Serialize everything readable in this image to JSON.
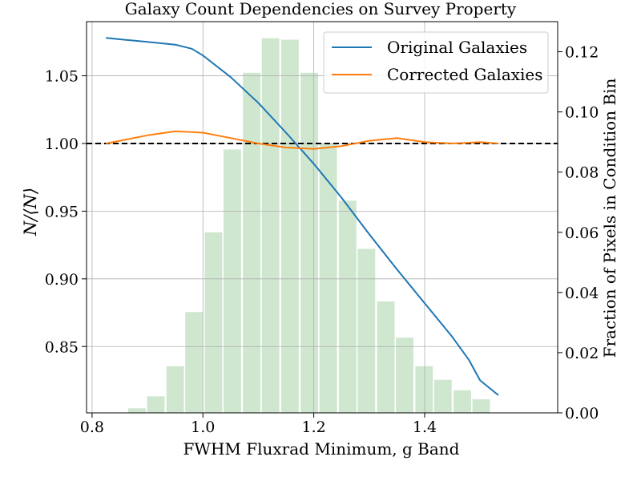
{
  "chart_data": {
    "type": "bar+line",
    "title": "Galaxy Count Dependencies on Survey Property",
    "xlabel": "FWHM Fluxrad Minimum, g Band",
    "ylabel_left": "N/⟨N⟩",
    "ylabel_right": "Fraction of Pixels in Condition Bin",
    "xlim": [
      0.79,
      1.64
    ],
    "ylim_left": [
      0.801,
      1.09
    ],
    "ylim_right": [
      0.0,
      0.13
    ],
    "x_ticks": [
      0.8,
      1.0,
      1.2,
      1.4
    ],
    "x_tick_labels": [
      "0.8",
      "1.0",
      "1.2",
      "1.4"
    ],
    "y_left_ticks": [
      0.85,
      0.9,
      0.95,
      1.0,
      1.05
    ],
    "y_left_tick_labels": [
      "0.85",
      "0.90",
      "0.95",
      "1.00",
      "1.05"
    ],
    "y_right_ticks": [
      0.0,
      0.02,
      0.04,
      0.06,
      0.08,
      0.1,
      0.12
    ],
    "y_right_tick_labels": [
      "0.00",
      "0.02",
      "0.04",
      "0.06",
      "0.08",
      "0.10",
      "0.12"
    ],
    "grid": true,
    "legend_position": "top-right",
    "reference_line": {
      "y": 1.0,
      "style": "dashed",
      "color": "#000000"
    },
    "histogram": {
      "axis": "right",
      "color": "#cfe6cf",
      "bin_width": 0.0345,
      "bin_centers": [
        0.846,
        0.881,
        0.915,
        0.95,
        0.984,
        1.019,
        1.053,
        1.088,
        1.122,
        1.157,
        1.192,
        1.226,
        1.261,
        1.295,
        1.33,
        1.364,
        1.399,
        1.433,
        1.468,
        1.502
      ],
      "values": [
        0.0,
        0.0015,
        0.0055,
        0.0155,
        0.0335,
        0.06,
        0.0875,
        0.113,
        0.1245,
        0.124,
        0.113,
        0.0895,
        0.0705,
        0.0545,
        0.037,
        0.025,
        0.0155,
        0.011,
        0.0075,
        0.0045
      ]
    },
    "series": [
      {
        "name": "Original Galaxies",
        "color": "#1f77b4",
        "x": [
          0.825,
          0.85,
          0.9,
          0.95,
          0.98,
          1.0,
          1.05,
          1.1,
          1.15,
          1.2,
          1.25,
          1.3,
          1.35,
          1.4,
          1.45,
          1.48,
          1.5,
          1.533
        ],
        "y": [
          1.078,
          1.077,
          1.075,
          1.073,
          1.07,
          1.065,
          1.049,
          1.03,
          1.008,
          0.985,
          0.96,
          0.933,
          0.907,
          0.882,
          0.857,
          0.84,
          0.825,
          0.814
        ]
      },
      {
        "name": "Corrected Galaxies",
        "color": "#ff7f0e",
        "x": [
          0.825,
          0.85,
          0.9,
          0.95,
          1.0,
          1.05,
          1.1,
          1.15,
          1.2,
          1.25,
          1.3,
          1.35,
          1.4,
          1.45,
          1.5,
          1.533
        ],
        "y": [
          1.0,
          1.002,
          1.006,
          1.009,
          1.008,
          1.004,
          1.0,
          0.997,
          0.996,
          0.998,
          1.002,
          1.004,
          1.001,
          1.0,
          1.001,
          1.0
        ]
      }
    ]
  }
}
